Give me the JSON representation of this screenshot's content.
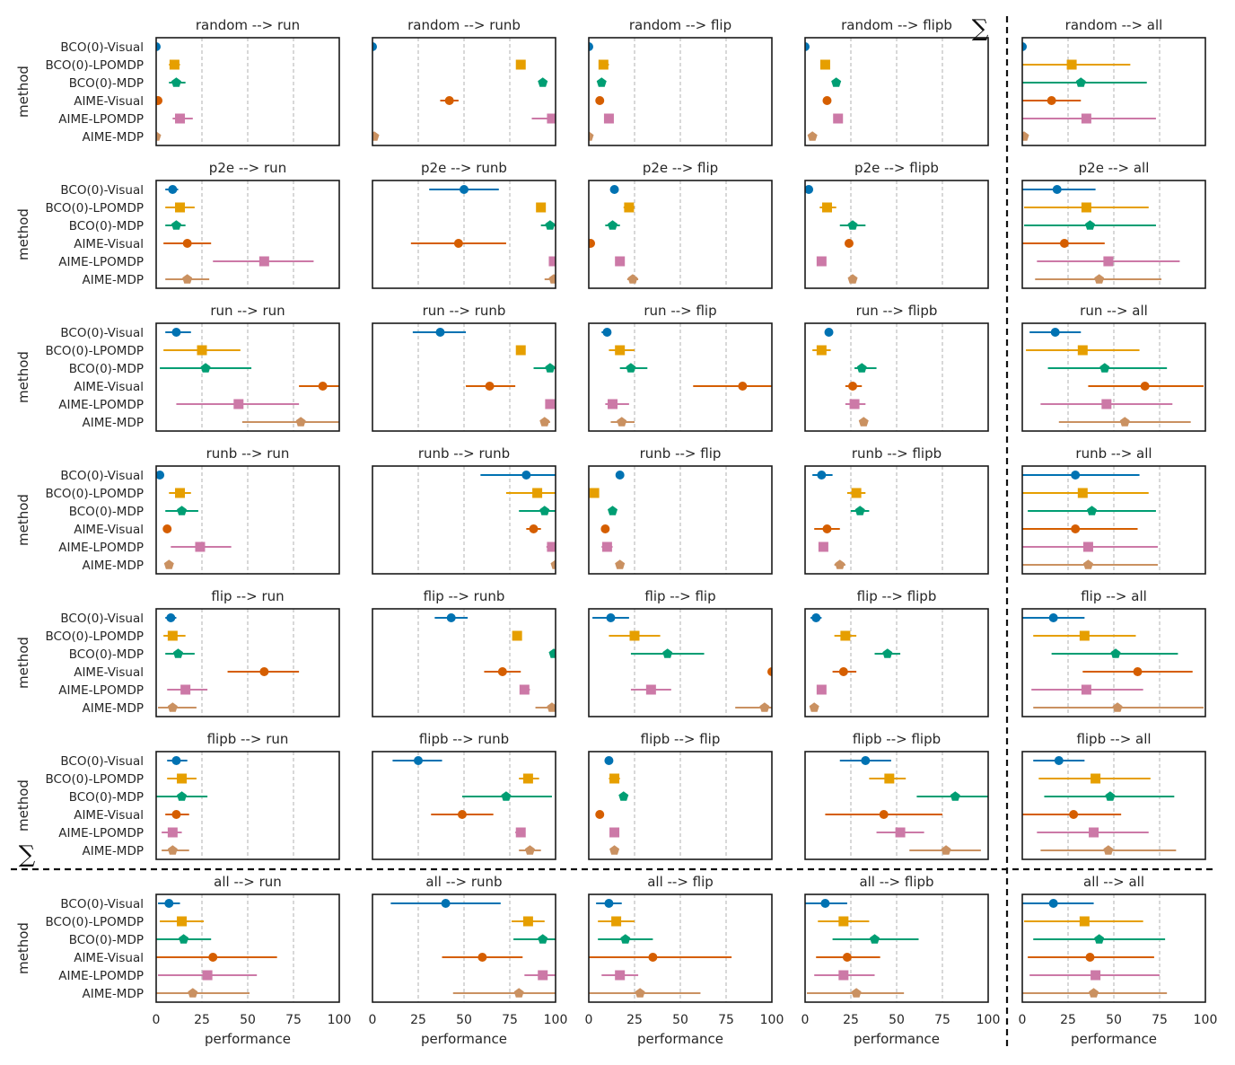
{
  "chart_data": {
    "type": "scatter",
    "subtype": "pointplot-with-errorbars",
    "xlabel": "performance",
    "ylabel": "method",
    "xlim": [
      0,
      100
    ],
    "xticks": [
      0,
      25,
      50,
      75,
      100
    ],
    "grid": "vertical dashed at 25, 50, 75",
    "sum_symbol": "∑",
    "title_arrow": "-->",
    "methods": [
      "BCO(0)-Visual",
      "BCO(0)-LPOMDP",
      "BCO(0)-MDP",
      "AIME-Visual",
      "AIME-LPOMDP",
      "AIME-MDP"
    ],
    "method_colors": [
      "#0072b2",
      "#e69f00",
      "#009e73",
      "#d55e00",
      "#cc79a7",
      "#ca9161"
    ],
    "method_markers": [
      "circle",
      "square",
      "pentagon",
      "circle",
      "square",
      "pentagon"
    ],
    "sources": [
      "random",
      "p2e",
      "run",
      "runb",
      "flip",
      "flipb",
      "all"
    ],
    "targets": [
      "run",
      "runb",
      "flip",
      "flipb",
      "all"
    ],
    "value_format": "[mean, ci_low, ci_high]",
    "panels": [
      {
        "source": "random",
        "target": "run",
        "values": [
          [
            0,
            0,
            0
          ],
          [
            10,
            7,
            13
          ],
          [
            11,
            7,
            16
          ],
          [
            1,
            0,
            2
          ],
          [
            13,
            9,
            20
          ],
          [
            0,
            0,
            1
          ]
        ]
      },
      {
        "source": "random",
        "target": "runb",
        "values": [
          [
            0,
            0,
            0
          ],
          [
            81,
            81,
            81
          ],
          [
            93,
            93,
            93
          ],
          [
            42,
            37,
            47
          ],
          [
            98,
            87,
            100
          ],
          [
            1,
            0,
            2
          ]
        ]
      },
      {
        "source": "random",
        "target": "flip",
        "values": [
          [
            0,
            0,
            0
          ],
          [
            8,
            6,
            11
          ],
          [
            7,
            6,
            8
          ],
          [
            6,
            6,
            6
          ],
          [
            11,
            11,
            11
          ],
          [
            0,
            0,
            1
          ]
        ]
      },
      {
        "source": "random",
        "target": "flipb",
        "values": [
          [
            0,
            0,
            0
          ],
          [
            11,
            11,
            11
          ],
          [
            17,
            17,
            17
          ],
          [
            12,
            12,
            12
          ],
          [
            18,
            18,
            18
          ],
          [
            4,
            2,
            6
          ]
        ]
      },
      {
        "source": "random",
        "target": "all",
        "values": [
          [
            0,
            0,
            0
          ],
          [
            27,
            0,
            59
          ],
          [
            32,
            0,
            68
          ],
          [
            16,
            0,
            32
          ],
          [
            35,
            0,
            73
          ],
          [
            1,
            0,
            3
          ]
        ]
      },
      {
        "source": "p2e",
        "target": "run",
        "values": [
          [
            9,
            5,
            12
          ],
          [
            13,
            5,
            21
          ],
          [
            11,
            5,
            16
          ],
          [
            17,
            4,
            30
          ],
          [
            59,
            31,
            86
          ],
          [
            17,
            5,
            29
          ]
        ]
      },
      {
        "source": "p2e",
        "target": "runb",
        "values": [
          [
            50,
            31,
            69
          ],
          [
            92,
            92,
            92
          ],
          [
            97,
            92,
            100
          ],
          [
            47,
            21,
            73
          ],
          [
            99,
            97,
            100
          ],
          [
            99,
            94,
            100
          ]
        ]
      },
      {
        "source": "p2e",
        "target": "flip",
        "values": [
          [
            14,
            14,
            14
          ],
          [
            22,
            19,
            25
          ],
          [
            13,
            9,
            17
          ],
          [
            1,
            0,
            2
          ],
          [
            17,
            17,
            17
          ],
          [
            24,
            21,
            27
          ]
        ]
      },
      {
        "source": "p2e",
        "target": "flipb",
        "values": [
          [
            2,
            2,
            2
          ],
          [
            12,
            8,
            17
          ],
          [
            26,
            19,
            33
          ],
          [
            24,
            24,
            24
          ],
          [
            9,
            9,
            9
          ],
          [
            26,
            26,
            26
          ]
        ]
      },
      {
        "source": "p2e",
        "target": "all",
        "values": [
          [
            19,
            0,
            40
          ],
          [
            35,
            1,
            69
          ],
          [
            37,
            1,
            73
          ],
          [
            23,
            0,
            45
          ],
          [
            47,
            8,
            86
          ],
          [
            42,
            7,
            76
          ]
        ]
      },
      {
        "source": "run",
        "target": "run",
        "values": [
          [
            11,
            5,
            19
          ],
          [
            25,
            4,
            46
          ],
          [
            27,
            2,
            52
          ],
          [
            91,
            78,
            100
          ],
          [
            45,
            11,
            78
          ],
          [
            79,
            47,
            100
          ]
        ]
      },
      {
        "source": "run",
        "target": "runb",
        "values": [
          [
            37,
            22,
            51
          ],
          [
            81,
            81,
            81
          ],
          [
            97,
            88,
            100
          ],
          [
            64,
            51,
            78
          ],
          [
            97,
            95,
            99
          ],
          [
            94,
            92,
            97
          ]
        ]
      },
      {
        "source": "run",
        "target": "flip",
        "values": [
          [
            10,
            7,
            12
          ],
          [
            17,
            11,
            25
          ],
          [
            23,
            17,
            32
          ],
          [
            84,
            57,
            100
          ],
          [
            13,
            9,
            22
          ],
          [
            18,
            12,
            25
          ]
        ]
      },
      {
        "source": "run",
        "target": "flipb",
        "values": [
          [
            13,
            13,
            13
          ],
          [
            9,
            4,
            14
          ],
          [
            31,
            27,
            39
          ],
          [
            26,
            22,
            31
          ],
          [
            27,
            22,
            33
          ],
          [
            32,
            31,
            33
          ]
        ]
      },
      {
        "source": "run",
        "target": "all",
        "values": [
          [
            18,
            4,
            32
          ],
          [
            33,
            2,
            64
          ],
          [
            45,
            14,
            79
          ],
          [
            67,
            36,
            99
          ],
          [
            46,
            10,
            82
          ],
          [
            56,
            20,
            92
          ]
        ]
      },
      {
        "source": "runb",
        "target": "run",
        "values": [
          [
            2,
            0,
            4
          ],
          [
            13,
            7,
            19
          ],
          [
            14,
            5,
            23
          ],
          [
            6,
            4,
            8
          ],
          [
            24,
            8,
            41
          ],
          [
            7,
            5,
            9
          ]
        ]
      },
      {
        "source": "runb",
        "target": "runb",
        "values": [
          [
            84,
            59,
            100
          ],
          [
            90,
            73,
            100
          ],
          [
            94,
            80,
            100
          ],
          [
            88,
            84,
            92
          ],
          [
            98,
            95,
            100
          ],
          [
            100,
            98,
            100
          ]
        ]
      },
      {
        "source": "runb",
        "target": "flip",
        "values": [
          [
            17,
            17,
            17
          ],
          [
            3,
            3,
            3
          ],
          [
            13,
            11,
            15
          ],
          [
            9,
            9,
            9
          ],
          [
            10,
            7,
            13
          ],
          [
            17,
            16,
            18
          ]
        ]
      },
      {
        "source": "runb",
        "target": "flipb",
        "values": [
          [
            9,
            4,
            15
          ],
          [
            28,
            23,
            33
          ],
          [
            30,
            25,
            35
          ],
          [
            12,
            5,
            19
          ],
          [
            10,
            10,
            10
          ],
          [
            19,
            16,
            22
          ]
        ]
      },
      {
        "source": "runb",
        "target": "all",
        "values": [
          [
            29,
            0,
            64
          ],
          [
            33,
            0,
            69
          ],
          [
            38,
            3,
            73
          ],
          [
            29,
            0,
            63
          ],
          [
            36,
            0,
            74
          ],
          [
            36,
            0,
            74
          ]
        ]
      },
      {
        "source": "flip",
        "target": "run",
        "values": [
          [
            8,
            5,
            11
          ],
          [
            9,
            4,
            16
          ],
          [
            12,
            5,
            21
          ],
          [
            59,
            39,
            78
          ],
          [
            16,
            6,
            28
          ],
          [
            9,
            1,
            22
          ]
        ]
      },
      {
        "source": "flip",
        "target": "runb",
        "values": [
          [
            43,
            34,
            52
          ],
          [
            79,
            79,
            79
          ],
          [
            99,
            98,
            100
          ],
          [
            71,
            61,
            81
          ],
          [
            83,
            81,
            86
          ],
          [
            98,
            89,
            100
          ]
        ]
      },
      {
        "source": "flip",
        "target": "flip",
        "values": [
          [
            12,
            2,
            22
          ],
          [
            25,
            11,
            39
          ],
          [
            43,
            23,
            63
          ],
          [
            100,
            100,
            100
          ],
          [
            34,
            23,
            45
          ],
          [
            96,
            80,
            100
          ]
        ]
      },
      {
        "source": "flip",
        "target": "flipb",
        "values": [
          [
            6,
            3,
            9
          ],
          [
            22,
            16,
            28
          ],
          [
            45,
            38,
            52
          ],
          [
            21,
            15,
            28
          ],
          [
            9,
            9,
            9
          ],
          [
            5,
            5,
            5
          ]
        ]
      },
      {
        "source": "flip",
        "target": "all",
        "values": [
          [
            17,
            0,
            34
          ],
          [
            34,
            6,
            62
          ],
          [
            51,
            16,
            85
          ],
          [
            63,
            33,
            93
          ],
          [
            35,
            5,
            66
          ],
          [
            52,
            6,
            99
          ]
        ]
      },
      {
        "source": "flipb",
        "target": "run",
        "values": [
          [
            11,
            6,
            17
          ],
          [
            14,
            6,
            22
          ],
          [
            14,
            0,
            28
          ],
          [
            11,
            5,
            18
          ],
          [
            9,
            3,
            14
          ],
          [
            9,
            3,
            18
          ]
        ]
      },
      {
        "source": "flipb",
        "target": "runb",
        "values": [
          [
            25,
            11,
            38
          ],
          [
            85,
            80,
            91
          ],
          [
            73,
            49,
            98
          ],
          [
            49,
            32,
            66
          ],
          [
            81,
            78,
            83
          ],
          [
            86,
            80,
            92
          ]
        ]
      },
      {
        "source": "flipb",
        "target": "flip",
        "values": [
          [
            11,
            11,
            11
          ],
          [
            14,
            11,
            17
          ],
          [
            19,
            19,
            19
          ],
          [
            6,
            6,
            6
          ],
          [
            14,
            14,
            14
          ],
          [
            14,
            14,
            14
          ]
        ]
      },
      {
        "source": "flipb",
        "target": "flipb",
        "values": [
          [
            33,
            19,
            47
          ],
          [
            46,
            35,
            55
          ],
          [
            82,
            61,
            100
          ],
          [
            43,
            11,
            75
          ],
          [
            52,
            39,
            65
          ],
          [
            77,
            57,
            96
          ]
        ]
      },
      {
        "source": "flipb",
        "target": "all",
        "values": [
          [
            20,
            6,
            34
          ],
          [
            40,
            9,
            70
          ],
          [
            48,
            12,
            83
          ],
          [
            28,
            0,
            54
          ],
          [
            39,
            8,
            69
          ],
          [
            47,
            10,
            84
          ]
        ]
      },
      {
        "source": "all",
        "target": "run",
        "values": [
          [
            7,
            1,
            13
          ],
          [
            14,
            2,
            26
          ],
          [
            15,
            0,
            30
          ],
          [
            31,
            0,
            66
          ],
          [
            28,
            1,
            55
          ],
          [
            20,
            0,
            51
          ]
        ]
      },
      {
        "source": "all",
        "target": "runb",
        "values": [
          [
            40,
            10,
            70
          ],
          [
            85,
            76,
            94
          ],
          [
            93,
            77,
            100
          ],
          [
            60,
            38,
            82
          ],
          [
            93,
            83,
            100
          ],
          [
            80,
            44,
            100
          ]
        ]
      },
      {
        "source": "all",
        "target": "flip",
        "values": [
          [
            11,
            4,
            18
          ],
          [
            15,
            5,
            25
          ],
          [
            20,
            5,
            35
          ],
          [
            35,
            0,
            78
          ],
          [
            17,
            7,
            27
          ],
          [
            28,
            0,
            61
          ]
        ]
      },
      {
        "source": "all",
        "target": "flipb",
        "values": [
          [
            11,
            0,
            23
          ],
          [
            21,
            7,
            35
          ],
          [
            38,
            15,
            62
          ],
          [
            23,
            6,
            41
          ],
          [
            21,
            5,
            38
          ],
          [
            28,
            1,
            54
          ]
        ]
      },
      {
        "source": "all",
        "target": "all",
        "values": [
          [
            17,
            0,
            39
          ],
          [
            34,
            1,
            66
          ],
          [
            42,
            6,
            78
          ],
          [
            37,
            3,
            72
          ],
          [
            40,
            4,
            75
          ],
          [
            39,
            0,
            79
          ]
        ]
      }
    ]
  }
}
